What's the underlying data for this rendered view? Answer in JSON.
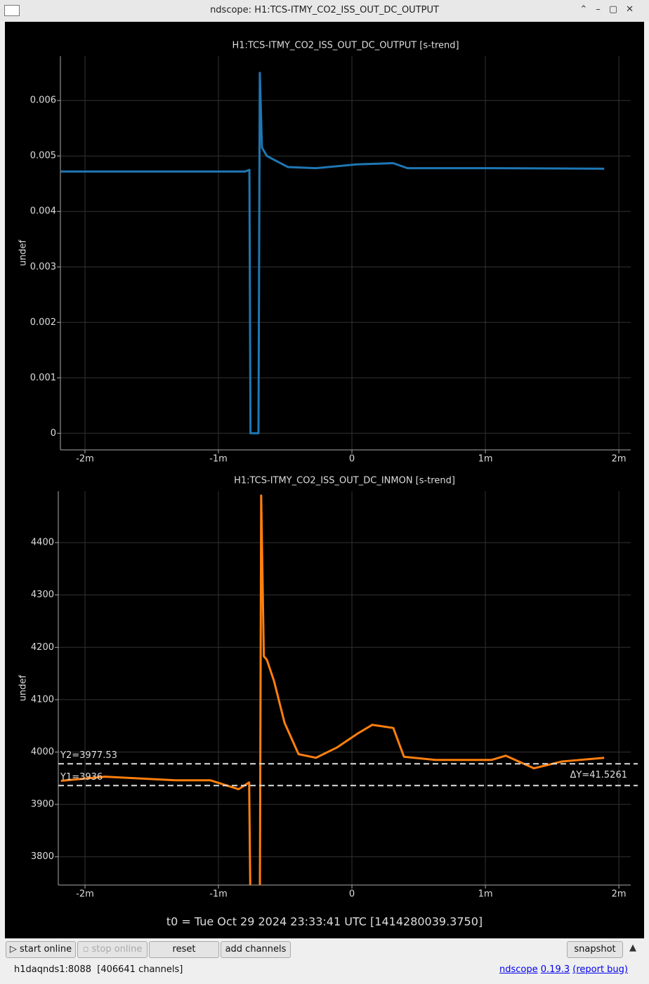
{
  "window_title": "ndscope: H1:TCS-ITMY_CO2_ISS_OUT_DC_OUTPUT",
  "chart_data": [
    {
      "type": "line",
      "title": "H1:TCS-ITMY_CO2_ISS_OUT_DC_OUTPUT [s-trend]",
      "ylabel": "undef",
      "color": "#1f77b4",
      "grid": true,
      "xlim": [
        -2.184,
        2.089
      ],
      "xticks": [
        {
          "value": -2,
          "label": "-2m"
        },
        {
          "value": -1,
          "label": "-1m"
        },
        0,
        {
          "value": 1,
          "label": "1m"
        },
        {
          "value": 2,
          "label": "2m"
        }
      ],
      "ylim": [
        -0.0003,
        0.0068
      ],
      "yticks": [
        0,
        0.001,
        0.002,
        0.003,
        0.004,
        0.005,
        0.006
      ],
      "x": [
        -2.18,
        -1.5,
        -0.8,
        -0.768,
        -0.76,
        -0.7,
        -0.69,
        -0.674,
        -0.637,
        -0.479,
        -0.27,
        0.047,
        0.31,
        0.416,
        1.047,
        1.89
      ],
      "values": [
        0.00472,
        0.00472,
        0.00472,
        0.00475,
        0,
        0,
        0.0065,
        0.00515,
        0.005,
        0.0048,
        0.00478,
        0.00485,
        0.00487,
        0.00478,
        0.00478,
        0.00477
      ]
    },
    {
      "type": "line",
      "title": "H1:TCS-ITMY_CO2_ISS_OUT_DC_INMON [s-trend]",
      "ylabel": "undef",
      "color": "#ff7f0e",
      "grid": true,
      "xlim": [
        -2.2,
        2.089
      ],
      "xticks": [
        {
          "value": -2,
          "label": "-2m"
        },
        {
          "value": -1,
          "label": "-1m"
        },
        0,
        {
          "value": 1,
          "label": "1m"
        },
        {
          "value": 2,
          "label": "2m"
        }
      ],
      "ylim": [
        3746,
        4498
      ],
      "yticks": [
        3800,
        3900,
        4000,
        4100,
        4200,
        4300,
        4400
      ],
      "x": [
        -2.18,
        -1.85,
        -1.32,
        -1.06,
        -0.85,
        -0.77,
        -0.76,
        -0.69,
        -0.68,
        -0.66,
        -0.637,
        -0.584,
        -0.505,
        -0.4,
        -0.27,
        -0.11,
        0.047,
        0.153,
        0.31,
        0.39,
        0.626,
        1.047,
        1.153,
        1.363,
        1.574,
        1.89
      ],
      "values": [
        3945,
        3953,
        3946,
        3946,
        3929,
        3942,
        3700,
        3700,
        4490,
        4183,
        4176,
        4136,
        4056,
        3996,
        3989,
        4009,
        4036,
        4052,
        4046,
        3991,
        3985,
        3985,
        3993,
        3969,
        3982,
        3989
      ],
      "cursors": [
        {
          "label": "Y2=3977.53",
          "value": 3977.53
        },
        {
          "label": "Y1=3936",
          "value": 3936
        }
      ],
      "delta_label": "ΔY=41.5261"
    }
  ],
  "t0": "t0 = Tue Oct 29 2024 23:33:41 UTC [1414280039.3750]",
  "buttons": [
    "start online",
    "stop online",
    "reset",
    "add channels",
    "snapshot"
  ],
  "status": "h1daqnds1:8088  [406641 channels]",
  "links": [
    "ndscope",
    "0.19.3",
    "(report bug)"
  ]
}
